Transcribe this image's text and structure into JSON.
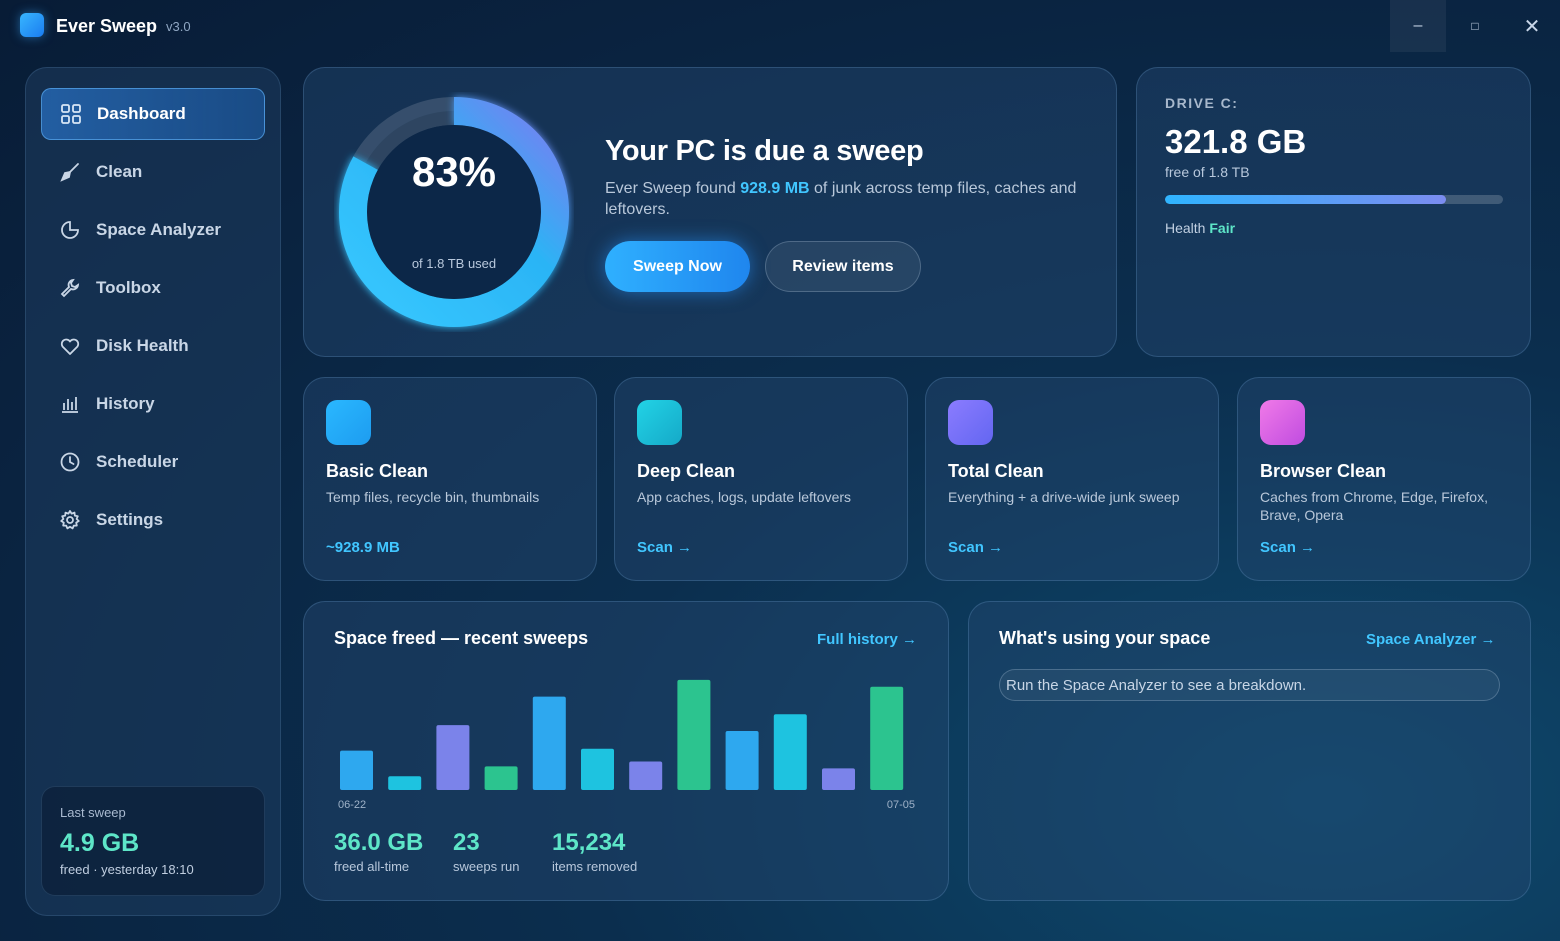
{
  "app": {
    "name": "Ever Sweep",
    "version": "v3.0"
  },
  "window_controls": {
    "minimize": "–",
    "maximize": "□",
    "close": "✕"
  },
  "sidebar": {
    "items": [
      {
        "label": "Dashboard",
        "icon": "grid-icon",
        "active": true
      },
      {
        "label": "Clean",
        "icon": "broom-icon"
      },
      {
        "label": "Space Analyzer",
        "icon": "pie-icon"
      },
      {
        "label": "Toolbox",
        "icon": "wrench-icon"
      },
      {
        "label": "Disk Health",
        "icon": "heart-icon"
      },
      {
        "label": "History",
        "icon": "bar-chart-icon"
      },
      {
        "label": "Scheduler",
        "icon": "clock-icon"
      },
      {
        "label": "Settings",
        "icon": "gear-icon"
      }
    ],
    "last_sweep": {
      "title": "Last sweep",
      "value": "4.9 GB",
      "sub": "freed · yesterday 18:10"
    }
  },
  "hero": {
    "usage_percent": "83%",
    "usage_fraction": 0.83,
    "usage_sub": "of 1.8 TB used",
    "title": "Your PC is due a sweep",
    "desc_prefix": "Ever Sweep found",
    "desc_amount": "928.9 MB",
    "desc_suffix": "of junk across temp files, caches and leftovers.",
    "primary_button": "Sweep Now",
    "secondary_button": "Review items"
  },
  "drive": {
    "label": "DRIVE C:",
    "free": "321.8 GB",
    "of_total": "free of 1.8 TB",
    "bar_fraction": 0.83,
    "health_label": "Health",
    "health_value": "Fair"
  },
  "modes": [
    {
      "title": "Basic Clean",
      "desc": "Temp files, recycle bin, thumbnails",
      "action": "~928.9 MB",
      "color_from": "#2ab8ff",
      "color_to": "#1d9cf0"
    },
    {
      "title": "Deep Clean",
      "desc": "App caches, logs, update leftovers",
      "action": "Scan →",
      "color_from": "#22d3e6",
      "color_to": "#15a9c8"
    },
    {
      "title": "Total Clean",
      "desc": "Everything + a drive-wide junk sweep",
      "action": "Scan →",
      "color_from": "#8b7cff",
      "color_to": "#6366f1"
    },
    {
      "title": "Browser Clean",
      "desc": "Caches from Chrome, Edge, Firefox, Brave, Opera",
      "action": "Scan →",
      "color_from": "#f07ae8",
      "color_to": "#c04ce0"
    }
  ],
  "history": {
    "title": "Space freed — recent sweeps",
    "link": "Full history →",
    "stats": [
      {
        "value": "36.0 GB",
        "label": "freed all-time"
      },
      {
        "value": "23",
        "label": "sweeps run"
      },
      {
        "value": "15,234",
        "label": "items removed"
      }
    ]
  },
  "chart_data": {
    "type": "bar",
    "x_labels": [
      "06-22",
      "07-05"
    ],
    "values": [
      40,
      14,
      66,
      24,
      95,
      42,
      29,
      112,
      60,
      77,
      22,
      105
    ],
    "colors": [
      "#2ea8ef",
      "#1ec3e0",
      "#7b83ea",
      "#2cc48f",
      "#2ea8ef",
      "#1ec3e0",
      "#7b83ea",
      "#2cc48f",
      "#2ea8ef",
      "#1ec3e0",
      "#7b83ea",
      "#2cc48f"
    ],
    "ylim": [
      0,
      120
    ],
    "grid": false
  },
  "space": {
    "title": "What's using your space",
    "link": "Space Analyzer →",
    "placeholder": "Run the Space Analyzer to see a breakdown."
  }
}
